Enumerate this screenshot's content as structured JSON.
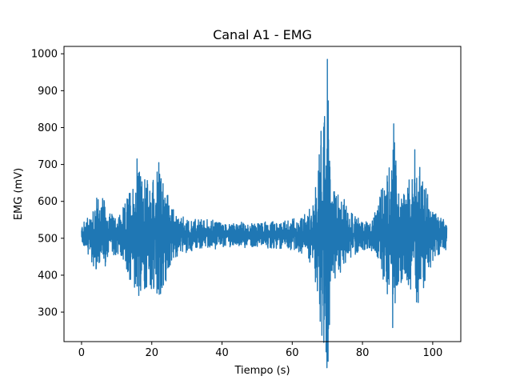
{
  "chart_data": {
    "type": "line",
    "title": "Canal A1 - EMG",
    "xlabel": "Tiempo (s)",
    "ylabel": "EMG (mV)",
    "xlim": [
      -5,
      108
    ],
    "ylim": [
      220,
      1020
    ],
    "xticks": [
      0,
      20,
      40,
      60,
      80,
      100
    ],
    "yticks": [
      300,
      400,
      500,
      600,
      700,
      800,
      900,
      1000
    ],
    "grid": false,
    "series": [
      {
        "color": "#1f77b4",
        "x_range": [
          0,
          104
        ],
        "baseline": 510,
        "envelope": [
          {
            "t": 0,
            "amp": 25
          },
          {
            "t": 2,
            "amp": 55
          },
          {
            "t": 4,
            "amp": 110
          },
          {
            "t": 6,
            "amp": 100
          },
          {
            "t": 8,
            "amp": 60
          },
          {
            "t": 10,
            "amp": 55
          },
          {
            "t": 12,
            "amp": 70
          },
          {
            "t": 14,
            "amp": 140
          },
          {
            "t": 16,
            "amp": 185
          },
          {
            "t": 18,
            "amp": 150
          },
          {
            "t": 20,
            "amp": 165
          },
          {
            "t": 22,
            "amp": 175
          },
          {
            "t": 24,
            "amp": 140
          },
          {
            "t": 26,
            "amp": 70
          },
          {
            "t": 28,
            "amp": 45
          },
          {
            "t": 35,
            "amp": 40
          },
          {
            "t": 45,
            "amp": 30
          },
          {
            "t": 55,
            "amp": 32
          },
          {
            "t": 62,
            "amp": 45
          },
          {
            "t": 66,
            "amp": 80
          },
          {
            "t": 68,
            "amp": 260
          },
          {
            "t": 69,
            "amp": 300
          },
          {
            "t": 70,
            "amp": 460
          },
          {
            "t": 71,
            "amp": 120
          },
          {
            "t": 73,
            "amp": 120
          },
          {
            "t": 75,
            "amp": 90
          },
          {
            "t": 78,
            "amp": 50
          },
          {
            "t": 82,
            "amp": 35
          },
          {
            "t": 84,
            "amp": 60
          },
          {
            "t": 86,
            "amp": 150
          },
          {
            "t": 88,
            "amp": 200
          },
          {
            "t": 89,
            "amp": 290
          },
          {
            "t": 90,
            "amp": 140
          },
          {
            "t": 92,
            "amp": 120
          },
          {
            "t": 94,
            "amp": 170
          },
          {
            "t": 96,
            "amp": 200
          },
          {
            "t": 98,
            "amp": 130
          },
          {
            "t": 100,
            "amp": 70
          },
          {
            "t": 104,
            "amp": 40
          }
        ],
        "spikes": [
          {
            "t": 15.8,
            "y": 715
          },
          {
            "t": 16.3,
            "y": 345
          },
          {
            "t": 22.0,
            "y": 705
          },
          {
            "t": 22.5,
            "y": 350
          },
          {
            "t": 68.2,
            "y": 790
          },
          {
            "t": 68.6,
            "y": 350
          },
          {
            "t": 69.2,
            "y": 830
          },
          {
            "t": 69.5,
            "y": 290
          },
          {
            "t": 70.0,
            "y": 985
          },
          {
            "t": 70.3,
            "y": 255
          },
          {
            "t": 88.9,
            "y": 810
          },
          {
            "t": 88.6,
            "y": 258
          },
          {
            "t": 89.3,
            "y": 325
          },
          {
            "t": 94.9,
            "y": 740
          },
          {
            "t": 95.2,
            "y": 365
          }
        ]
      }
    ]
  }
}
